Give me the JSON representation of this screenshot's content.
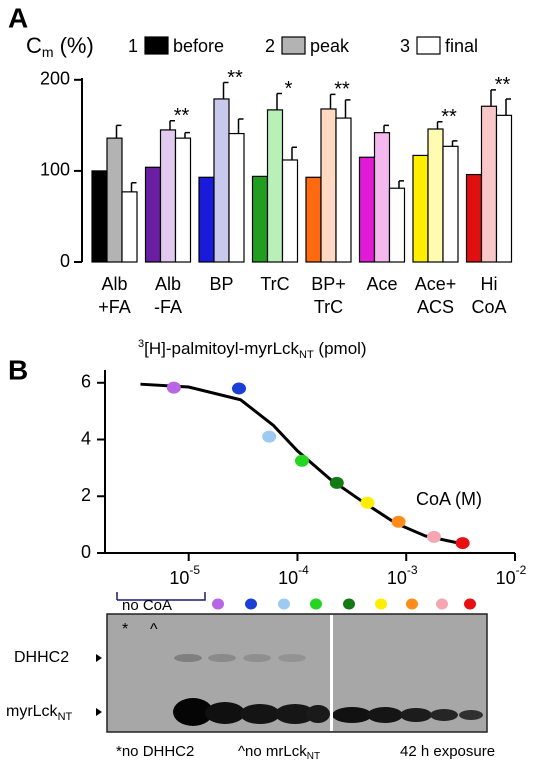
{
  "chart_data": [
    {
      "type": "bar",
      "panel": "A",
      "title": {
        "main": "C",
        "sub": "m",
        "rest": "(%)"
      },
      "categories": [
        [
          "Alb",
          "+FA"
        ],
        [
          "Alb",
          "-FA"
        ],
        [
          "BP"
        ],
        [
          "TrC"
        ],
        [
          "BP+",
          "TrC"
        ],
        [
          "Ace"
        ],
        [
          "Ace+",
          "ACS"
        ],
        [
          "Hi",
          "CoA"
        ]
      ],
      "series": [
        {
          "number": "1",
          "name": "before",
          "color": "#000000",
          "values": [
            100,
            104,
            93,
            94,
            93,
            115,
            117,
            96
          ]
        },
        {
          "number": "2",
          "name": "peak",
          "color": "#b3b3b3",
          "values": [
            136,
            145,
            179,
            167,
            168,
            142,
            146,
            171
          ],
          "errors": [
            14,
            10,
            18,
            18,
            16,
            8,
            8,
            18
          ]
        },
        {
          "number": "3",
          "name": "final",
          "color": "#ffffff",
          "values": [
            77,
            136,
            141,
            112,
            158,
            81,
            127,
            161
          ],
          "errors": [
            10,
            6,
            16,
            14,
            20,
            8,
            6,
            18
          ]
        }
      ],
      "group_colors": [
        [
          "#000000",
          "#b3b3b3",
          "#ffffff"
        ],
        [
          "#6a1fa3",
          "#e2c9ef",
          "#ffffff"
        ],
        [
          "#1a1adb",
          "#c9c9ee",
          "#ffffff"
        ],
        [
          "#1f9e1f",
          "#b8f0b8",
          "#ffffff"
        ],
        [
          "#ff6a10",
          "#ffd9c2",
          "#ffffff"
        ],
        [
          "#e01ad6",
          "#f4b8ee",
          "#ffffff"
        ],
        [
          "#ffee00",
          "#fffbb0",
          "#ffffff"
        ],
        [
          "#e01010",
          "#f8c8c8",
          "#ffffff"
        ]
      ],
      "significance": [
        null,
        "**",
        "**",
        "*",
        "**",
        null,
        "**",
        "**"
      ],
      "ylim": [
        0,
        202
      ],
      "yticks": [
        0,
        100,
        200
      ]
    },
    {
      "type": "scatter",
      "panel": "B",
      "title": {
        "sup": "3",
        "main": "[H]-palmitoyl-myrLck",
        "sub": "NT",
        "rest": " (pmol)"
      },
      "xlabel": "CoA (M)",
      "x": [
        7.3e-06,
        2.9e-05,
        5.5e-05,
        0.00011,
        0.00023,
        0.00044,
        0.00085,
        0.0018,
        0.0033
      ],
      "values": [
        5.83,
        5.8,
        4.1,
        3.25,
        2.47,
        1.77,
        1.1,
        0.57,
        0.35
      ],
      "colors": [
        "#b866e6",
        "#1a3fd6",
        "#9ccaf0",
        "#22d622",
        "#147a14",
        "#ffee00",
        "#ff8c1a",
        "#f5a6b0",
        "#e81010"
      ],
      "fit": {
        "color": "#000000",
        "x": [
          3.6e-06,
          1e-05,
          3e-05,
          6e-05,
          0.0001,
          0.0002,
          0.0004,
          0.0008,
          0.0015,
          0.0035
        ],
        "values": [
          5.95,
          5.85,
          5.4,
          4.5,
          3.6,
          2.6,
          1.8,
          1.05,
          0.6,
          0.3
        ]
      },
      "log_x": true,
      "xlim": [
        1.7e-06,
        0.01
      ],
      "xticks": [
        {
          "value": 1e-05,
          "label": "10",
          "exp": "-5"
        },
        {
          "value": 0.0001,
          "label": "10",
          "exp": "-4"
        },
        {
          "value": 0.001,
          "label": "10",
          "exp": "-3"
        },
        {
          "value": 0.01,
          "label": "10",
          "exp": "-2"
        }
      ],
      "ylim": [
        0,
        6.45
      ],
      "yticks": [
        0,
        2,
        4,
        6
      ]
    }
  ],
  "blot": {
    "lane_group": "no CoA",
    "lane_marks": [
      "*",
      "^"
    ],
    "dhhc2": "DHHC2",
    "myrlck": {
      "main": "myrLck",
      "sub": "NT"
    },
    "footnotes": {
      "no_dhhc2": "*no DHHC2",
      "no_myrlck": {
        "main": "^no mrLck",
        "sub": "NT"
      },
      "exposure": "42 h exposure"
    }
  }
}
